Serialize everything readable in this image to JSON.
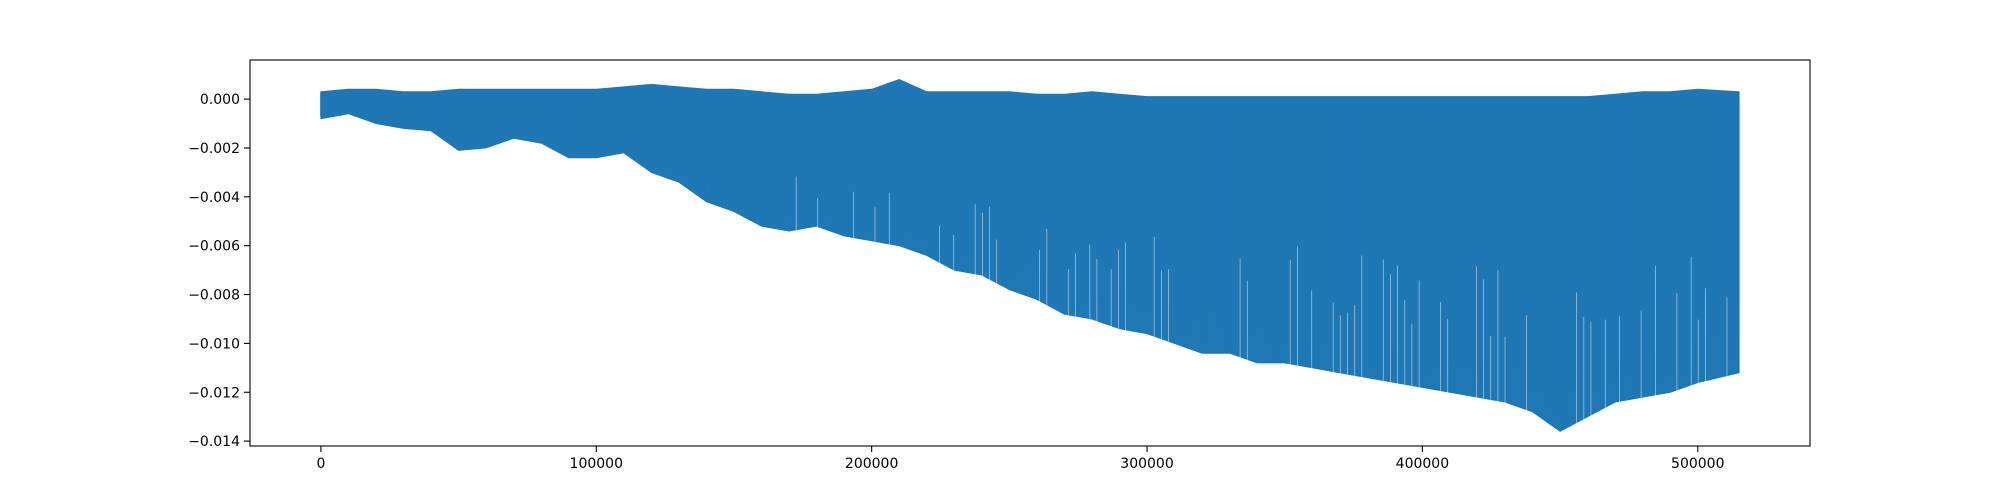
{
  "chart_data": {
    "type": "line",
    "title": "",
    "xlabel": "",
    "ylabel": "",
    "grid": false,
    "legend": "none",
    "xlim": [
      -25750,
      540750
    ],
    "ylim": [
      -0.0142,
      0.0016
    ],
    "x_ticks": [
      {
        "value": 0,
        "label": "0"
      },
      {
        "value": 100000,
        "label": "100000"
      },
      {
        "value": 200000,
        "label": "200000"
      },
      {
        "value": 300000,
        "label": "300000"
      },
      {
        "value": 400000,
        "label": "400000"
      },
      {
        "value": 500000,
        "label": "500000"
      }
    ],
    "y_ticks": [
      {
        "value": 0.0,
        "label": "0.000"
      },
      {
        "value": -0.002,
        "label": "−0.002"
      },
      {
        "value": -0.004,
        "label": "−0.004"
      },
      {
        "value": -0.006,
        "label": "−0.006"
      },
      {
        "value": -0.008,
        "label": "−0.008"
      },
      {
        "value": -0.01,
        "label": "−0.010"
      },
      {
        "value": -0.012,
        "label": "−0.012"
      },
      {
        "value": -0.014,
        "label": "−0.014"
      }
    ],
    "series": [
      {
        "color": "#1f77b4",
        "x": [
          0,
          10000,
          20000,
          30000,
          40000,
          50000,
          60000,
          70000,
          80000,
          90000,
          100000,
          110000,
          120000,
          130000,
          140000,
          150000,
          160000,
          170000,
          180000,
          190000,
          200000,
          210000,
          220000,
          230000,
          240000,
          250000,
          260000,
          270000,
          280000,
          290000,
          300000,
          310000,
          320000,
          330000,
          340000,
          350000,
          360000,
          370000,
          380000,
          390000,
          400000,
          410000,
          420000,
          430000,
          440000,
          450000,
          460000,
          470000,
          480000,
          490000,
          500000,
          515000
        ],
        "upper": [
          0.0003,
          0.0004,
          0.0004,
          0.0003,
          0.0003,
          0.0004,
          0.0004,
          0.0004,
          0.0004,
          0.0004,
          0.0004,
          0.0005,
          0.0006,
          0.0005,
          0.0004,
          0.0004,
          0.0003,
          0.0002,
          0.0002,
          0.0003,
          0.0004,
          0.0008,
          0.0003,
          0.0003,
          0.0003,
          0.0003,
          0.0002,
          0.0002,
          0.0003,
          0.0002,
          0.0001,
          0.0001,
          0.0001,
          0.0001,
          0.0001,
          0.0001,
          0.0001,
          0.0001,
          0.0001,
          0.0001,
          0.0001,
          0.0001,
          0.0001,
          0.0001,
          0.0001,
          0.0001,
          0.0001,
          0.0002,
          0.0003,
          0.0003,
          0.0004,
          0.0003
        ],
        "lower": [
          -0.0008,
          -0.0006,
          -0.001,
          -0.0012,
          -0.0013,
          -0.0021,
          -0.002,
          -0.0016,
          -0.0018,
          -0.0024,
          -0.0024,
          -0.0022,
          -0.003,
          -0.0034,
          -0.0042,
          -0.0046,
          -0.0052,
          -0.0054,
          -0.0052,
          -0.0056,
          -0.0058,
          -0.006,
          -0.0064,
          -0.007,
          -0.0072,
          -0.0078,
          -0.0082,
          -0.0088,
          -0.009,
          -0.0094,
          -0.0096,
          -0.01,
          -0.0104,
          -0.0104,
          -0.0108,
          -0.0108,
          -0.011,
          -0.0112,
          -0.0114,
          -0.0116,
          -0.0118,
          -0.012,
          -0.0122,
          -0.0124,
          -0.0128,
          -0.0136,
          -0.013,
          -0.0124,
          -0.0122,
          -0.012,
          -0.0116,
          -0.0112
        ]
      }
    ]
  }
}
